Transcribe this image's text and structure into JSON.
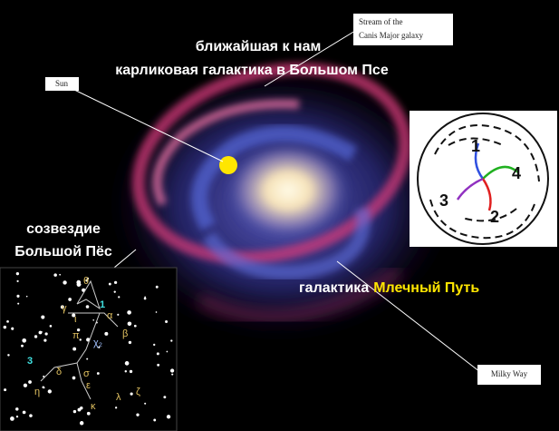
{
  "labels": {
    "stream": [
      "Stream of the",
      "Canis Major galaxy"
    ],
    "sun": "Sun",
    "milky_way": "Milky Way"
  },
  "captions": {
    "dwarf": [
      "ближайшая к нам",
      "карликовая галактика в Большом Псе"
    ],
    "constellation": [
      "созвездие",
      "Большой Пёс"
    ],
    "galaxy": {
      "prefix": "галактика",
      "highlight": "Млечный Путь"
    }
  },
  "arm_diagram": {
    "arms": [
      "1",
      "2",
      "3",
      "4"
    ]
  },
  "star_map": {
    "labels": [
      "θ",
      "γ",
      "ι",
      "1",
      "α",
      "β",
      "π",
      "χ₂",
      "3",
      "δ",
      "σ",
      "η",
      "ε",
      "λ",
      "κ",
      "ζ"
    ]
  }
}
